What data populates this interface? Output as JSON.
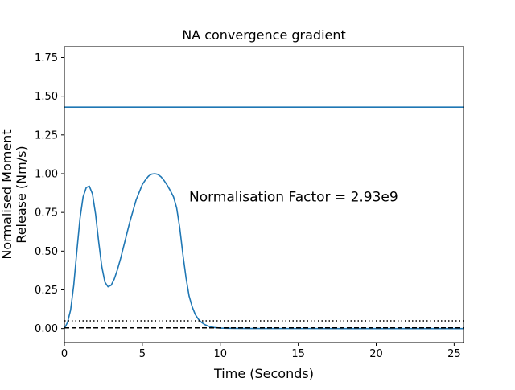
{
  "chart_data": {
    "type": "line",
    "title": "NA convergence gradient",
    "xlabel": "Time (Seconds)",
    "ylabel_lines": [
      "Normalised Moment",
      "Release (Nm/s)"
    ],
    "xlim": [
      0,
      25.6
    ],
    "ylim": [
      -0.09,
      1.82
    ],
    "xticks": [
      {
        "value": 0,
        "label": "0"
      },
      {
        "value": 5,
        "label": "5"
      },
      {
        "value": 10,
        "label": "10"
      },
      {
        "value": 15,
        "label": "15"
      },
      {
        "value": 20,
        "label": "20"
      },
      {
        "value": 25,
        "label": "25"
      }
    ],
    "yticks": [
      {
        "value": 0.0,
        "label": "0.00"
      },
      {
        "value": 0.25,
        "label": "0.25"
      },
      {
        "value": 0.5,
        "label": "0.50"
      },
      {
        "value": 0.75,
        "label": "0.75"
      },
      {
        "value": 1.0,
        "label": "1.00"
      },
      {
        "value": 1.25,
        "label": "1.25"
      },
      {
        "value": 1.5,
        "label": "1.50"
      },
      {
        "value": 1.75,
        "label": "1.75"
      }
    ],
    "annotation": {
      "text": "Normalisation Factor = 2.93e9",
      "x": 8.0,
      "y": 0.82
    },
    "grid": false,
    "series": [
      {
        "style": "solid",
        "color": "#1f77b4",
        "x": [
          0,
          0.2,
          0.4,
          0.6,
          0.8,
          1.0,
          1.2,
          1.4,
          1.6,
          1.8,
          2.0,
          2.2,
          2.4,
          2.6,
          2.8,
          3.0,
          3.2,
          3.4,
          3.6,
          3.8,
          4.0,
          4.2,
          4.4,
          4.6,
          4.8,
          5.0,
          5.2,
          5.4,
          5.6,
          5.8,
          6.0,
          6.2,
          6.4,
          6.6,
          6.8,
          7.0,
          7.2,
          7.4,
          7.6,
          7.8,
          8.0,
          8.2,
          8.4,
          8.6,
          8.8,
          9.0,
          9.2,
          9.4,
          9.6,
          9.8,
          10.0,
          10.5,
          11.0,
          12.0,
          14.0,
          18.0,
          22.0,
          25.6
        ],
        "y": [
          0.0,
          0.04,
          0.12,
          0.28,
          0.5,
          0.71,
          0.85,
          0.91,
          0.92,
          0.87,
          0.74,
          0.56,
          0.4,
          0.3,
          0.27,
          0.28,
          0.32,
          0.38,
          0.45,
          0.53,
          0.61,
          0.69,
          0.76,
          0.83,
          0.88,
          0.93,
          0.96,
          0.985,
          0.997,
          1.0,
          0.995,
          0.98,
          0.955,
          0.925,
          0.89,
          0.85,
          0.78,
          0.65,
          0.48,
          0.33,
          0.21,
          0.14,
          0.09,
          0.06,
          0.04,
          0.026,
          0.017,
          0.011,
          0.007,
          0.005,
          0.003,
          0.002,
          0.001,
          0.0005,
          0.0002,
          0.0001,
          0.0,
          0.0
        ]
      },
      {
        "style": "solid",
        "color": "#1f77b4",
        "x": [
          0,
          25.6
        ],
        "y": [
          1.43,
          1.43
        ]
      },
      {
        "style": "dotted",
        "color": "#000000",
        "x": [
          0,
          25.6
        ],
        "y": [
          0.05,
          0.05
        ]
      },
      {
        "style": "dashed",
        "color": "#000000",
        "x": [
          0,
          25.6
        ],
        "y": [
          0.005,
          0.005
        ]
      }
    ]
  }
}
